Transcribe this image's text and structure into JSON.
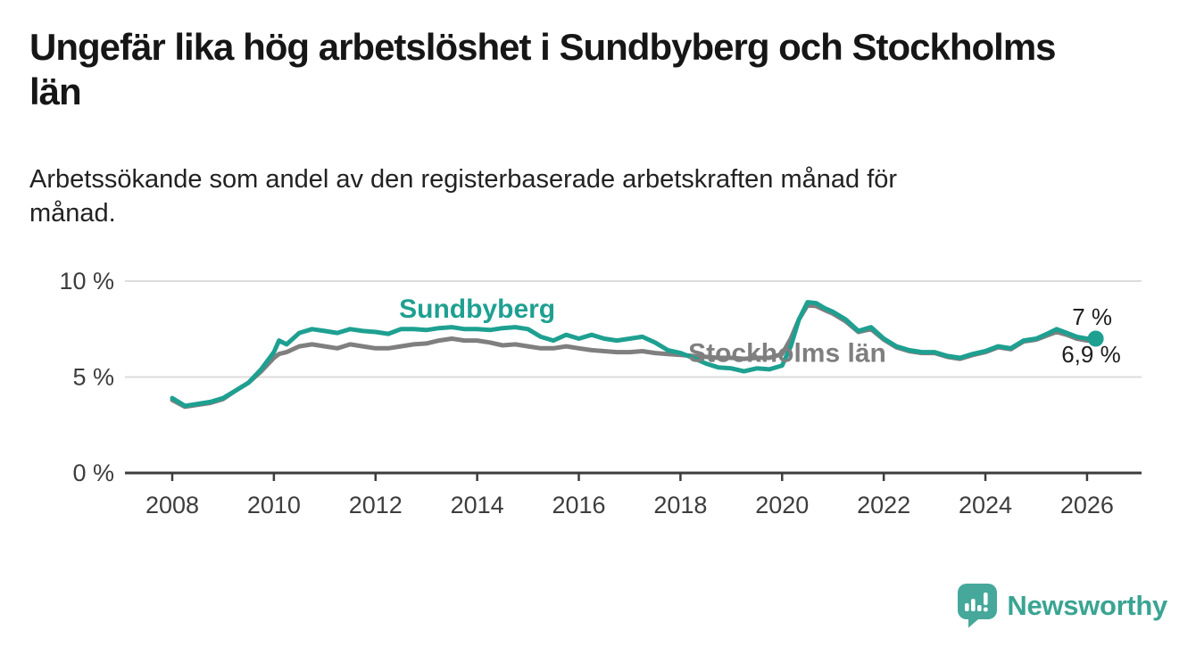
{
  "header": {
    "title_lines": [
      "Ungefär lika hög arbetslöshet i Sundbyberg och Stockholms",
      "län"
    ],
    "subtitle_lines": [
      "Arbetssökande som andel av den registerbaserade arbetskraften månad för",
      "månad."
    ]
  },
  "chart_data": {
    "type": "line",
    "title": "Ungefär lika hög arbetslöshet i Sundbyberg och Stockholms län",
    "subtitle": "Arbetssökande som andel av den registerbaserade arbetskraften månad för månad.",
    "ylabel": "",
    "xlabel": "",
    "unit": "%",
    "grid": "horizontal",
    "x_range": [
      2007.087,
      2027.055
    ],
    "y_range": [
      0,
      10
    ],
    "grid_color": "#dcdcdc",
    "axis_color": "#3c3c3c",
    "tick_color": "#3d3d3d",
    "x": [
      2008.0,
      2008.25,
      2008.5,
      2008.75,
      2009.0,
      2009.25,
      2009.5,
      2009.75,
      2010.0,
      2010.1,
      2010.25,
      2010.5,
      2010.75,
      2011.0,
      2011.25,
      2011.5,
      2011.75,
      2012.0,
      2012.25,
      2012.5,
      2012.75,
      2013.0,
      2013.25,
      2013.5,
      2013.75,
      2014.0,
      2014.25,
      2014.5,
      2014.75,
      2015.0,
      2015.25,
      2015.5,
      2015.75,
      2016.0,
      2016.25,
      2016.5,
      2016.75,
      2017.0,
      2017.25,
      2017.5,
      2017.75,
      2018.0,
      2018.25,
      2018.5,
      2018.75,
      2019.0,
      2019.25,
      2019.5,
      2019.75,
      2020.0,
      2020.17,
      2020.33,
      2020.5,
      2020.67,
      2020.83,
      2021.0,
      2021.25,
      2021.5,
      2021.75,
      2022.0,
      2022.25,
      2022.5,
      2022.75,
      2023.0,
      2023.25,
      2023.5,
      2023.75,
      2024.0,
      2024.25,
      2024.5,
      2024.75,
      2025.0,
      2025.25,
      2025.4,
      2025.6,
      2025.8,
      2026.0,
      2026.17
    ],
    "series": [
      {
        "id": "stockholms-lan",
        "name": "Stockholms län",
        "color": "#7f7f7f",
        "end_label": "6,9 %",
        "end_value": 6.9,
        "label": {
          "text": "Stockholms län",
          "year": 2020.1,
          "value": 5.8
        },
        "values": [
          3.8,
          3.45,
          3.55,
          3.65,
          3.85,
          4.3,
          4.7,
          5.3,
          6.0,
          6.2,
          6.3,
          6.6,
          6.7,
          6.6,
          6.5,
          6.7,
          6.6,
          6.5,
          6.5,
          6.6,
          6.7,
          6.75,
          6.9,
          7.0,
          6.9,
          6.9,
          6.8,
          6.65,
          6.7,
          6.6,
          6.5,
          6.5,
          6.6,
          6.5,
          6.4,
          6.35,
          6.3,
          6.3,
          6.35,
          6.25,
          6.2,
          6.15,
          6.1,
          6.05,
          6.0,
          6.0,
          5.95,
          6.0,
          6.0,
          6.2,
          7.0,
          8.0,
          8.75,
          8.7,
          8.5,
          8.3,
          7.9,
          7.35,
          7.5,
          6.95,
          6.55,
          6.35,
          6.25,
          6.25,
          6.05,
          5.95,
          6.15,
          6.3,
          6.55,
          6.45,
          6.85,
          6.95,
          7.2,
          7.35,
          7.2,
          7.0,
          6.9,
          6.9
        ]
      },
      {
        "id": "sundbyberg",
        "name": "Sundbyberg",
        "color": "#1ea091",
        "end_label": "7 %",
        "end_value": 7.0,
        "end_dot": true,
        "label": {
          "text": "Sundbyberg",
          "year": 2014.0,
          "value": 8.1
        },
        "values": [
          3.9,
          3.5,
          3.6,
          3.7,
          3.9,
          4.3,
          4.7,
          5.4,
          6.3,
          6.9,
          6.7,
          7.3,
          7.5,
          7.4,
          7.3,
          7.5,
          7.4,
          7.35,
          7.25,
          7.5,
          7.5,
          7.45,
          7.55,
          7.6,
          7.5,
          7.5,
          7.45,
          7.55,
          7.6,
          7.5,
          7.1,
          6.9,
          7.2,
          7.0,
          7.2,
          7.0,
          6.9,
          7.0,
          7.1,
          6.8,
          6.4,
          6.25,
          6.0,
          5.7,
          5.5,
          5.45,
          5.3,
          5.45,
          5.4,
          5.6,
          6.6,
          8.0,
          8.9,
          8.85,
          8.6,
          8.4,
          8.0,
          7.4,
          7.6,
          7.0,
          6.6,
          6.4,
          6.3,
          6.3,
          6.1,
          6.0,
          6.2,
          6.35,
          6.6,
          6.5,
          6.9,
          7.0,
          7.3,
          7.5,
          7.3,
          7.1,
          7.0,
          7.0
        ]
      }
    ],
    "x_ticks": [
      {
        "value": 2008,
        "label": "2008"
      },
      {
        "value": 2010,
        "label": "2010"
      },
      {
        "value": 2012,
        "label": "2012"
      },
      {
        "value": 2014,
        "label": "2014"
      },
      {
        "value": 2016,
        "label": "2016"
      },
      {
        "value": 2018,
        "label": "2018"
      },
      {
        "value": 2020,
        "label": "2020"
      },
      {
        "value": 2022,
        "label": "2022"
      },
      {
        "value": 2024,
        "label": "2024"
      },
      {
        "value": 2026,
        "label": "2026"
      }
    ],
    "y_ticks": [
      {
        "value": 0,
        "label": "0 %"
      },
      {
        "value": 5,
        "label": "5 %"
      },
      {
        "value": 10,
        "label": "10 %"
      }
    ],
    "annotations": [
      {
        "text": "7 %",
        "year": 2026.1,
        "value": 7.72,
        "color": "#1d1d1d"
      },
      {
        "text": "6,9 %",
        "year": 2026.08,
        "value": 5.77,
        "color": "#1d1d1d"
      }
    ]
  },
  "footer": {
    "brand": "Newsworthy",
    "brand_color": "#3aa492",
    "logo_color": "#46a89b"
  }
}
